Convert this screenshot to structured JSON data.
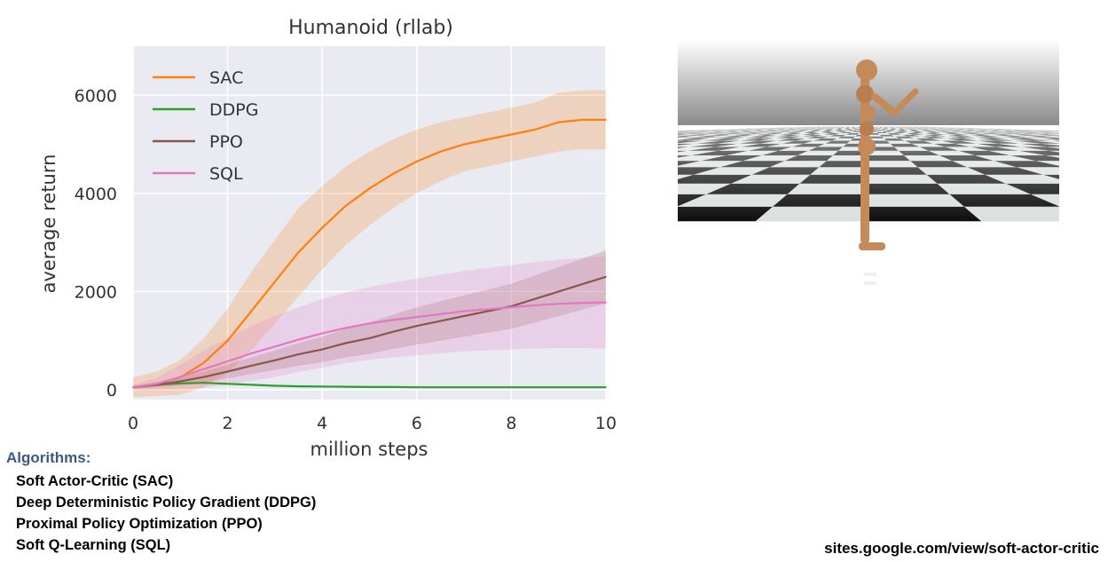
{
  "chart_data": {
    "type": "line",
    "title": "Humanoid (rllab)",
    "xlabel": "million steps",
    "ylabel": "average return",
    "xlim": [
      0,
      10
    ],
    "ylim": [
      -200,
      7000
    ],
    "xticks": [
      0,
      2,
      4,
      6,
      8,
      10
    ],
    "yticks": [
      0,
      2000,
      4000,
      6000
    ],
    "grid": true,
    "legend_position": "top-left",
    "x": [
      0,
      0.5,
      1,
      1.5,
      2,
      2.5,
      3,
      3.5,
      4,
      4.5,
      5,
      5.5,
      6,
      6.5,
      7,
      7.5,
      8,
      8.5,
      9,
      9.5,
      10
    ],
    "series": [
      {
        "name": "SAC",
        "color": "#ff7f0e",
        "shaded": true,
        "values": [
          50,
          120,
          250,
          550,
          1000,
          1600,
          2200,
          2800,
          3300,
          3750,
          4100,
          4400,
          4650,
          4850,
          5000,
          5100,
          5200,
          5300,
          5450,
          5500,
          5500
        ],
        "band": [
          200,
          250,
          350,
          500,
          650,
          800,
          850,
          900,
          850,
          800,
          750,
          700,
          650,
          600,
          550,
          550,
          550,
          550,
          600,
          600,
          600
        ]
      },
      {
        "name": "DDPG",
        "color": "#2ca02c",
        "shaded": false,
        "values": [
          50,
          100,
          130,
          140,
          120,
          100,
          80,
          70,
          65,
          60,
          55,
          55,
          50,
          50,
          50,
          50,
          50,
          50,
          50,
          50,
          50
        ],
        "band": [
          20,
          20,
          30,
          30,
          30,
          20,
          20,
          20,
          20,
          20,
          20,
          20,
          20,
          20,
          20,
          20,
          20,
          20,
          20,
          20,
          20
        ]
      },
      {
        "name": "PPO",
        "color": "#8c564b",
        "shaded": true,
        "values": [
          50,
          100,
          170,
          260,
          370,
          490,
          600,
          720,
          820,
          950,
          1050,
          1180,
          1300,
          1400,
          1500,
          1600,
          1700,
          1850,
          2000,
          2150,
          2300
        ],
        "band": [
          30,
          50,
          80,
          110,
          140,
          170,
          200,
          230,
          260,
          290,
          320,
          350,
          380,
          400,
          420,
          440,
          460,
          480,
          500,
          520,
          540
        ]
      },
      {
        "name": "SQL",
        "color": "#e377c2",
        "shaded": true,
        "values": [
          50,
          120,
          260,
          420,
          580,
          740,
          880,
          1020,
          1150,
          1260,
          1350,
          1420,
          1480,
          1540,
          1600,
          1640,
          1680,
          1720,
          1750,
          1770,
          1780
        ],
        "band": [
          50,
          120,
          250,
          380,
          480,
          560,
          620,
          660,
          700,
          720,
          740,
          760,
          780,
          800,
          820,
          840,
          860,
          880,
          900,
          920,
          940
        ]
      }
    ]
  },
  "algorithms": {
    "title": "Algorithms:",
    "items": [
      "Soft Actor-Critic (SAC)",
      "Deep Deterministic Policy Gradient (DDPG)",
      "Proximal Policy Optimization (PPO)",
      "Soft Q-Learning (SQL)"
    ]
  },
  "footer": {
    "url": "sites.google.com/view/soft-actor-critic"
  },
  "colors": {
    "plot_bg": "#eaeaf2",
    "accent": "#3d5a80"
  }
}
